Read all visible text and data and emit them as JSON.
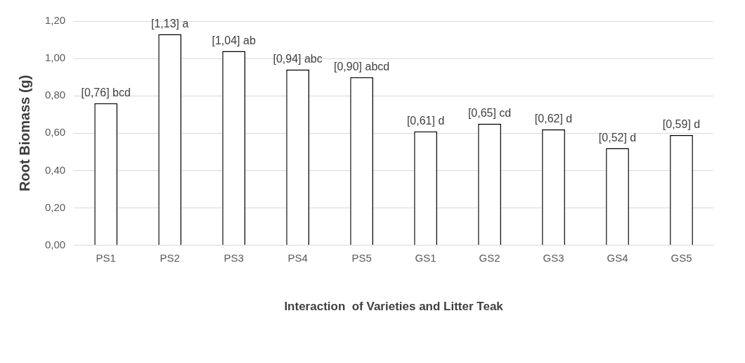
{
  "chart_data": {
    "type": "bar",
    "xlabel": "Interaction  of Varieties and Litter Teak",
    "ylabel": "Root Biomass (g)",
    "categories": [
      "PS1",
      "PS2",
      "PS3",
      "PS4",
      "PS5",
      "GS1",
      "GS2",
      "GS3",
      "GS4",
      "GS5"
    ],
    "values": [
      0.76,
      1.13,
      1.04,
      0.94,
      0.9,
      0.61,
      0.65,
      0.62,
      0.52,
      0.59
    ],
    "value_labels": [
      "[0,76] bcd",
      "[1,13] a",
      "[1,04] ab",
      "[0,94] abc",
      "[0,90] abcd",
      "[0,61] d",
      "[0,65] cd",
      "[0,62] d",
      "[0,52] d",
      "[0,59] d"
    ],
    "color": "#ffffff",
    "ylim": [
      0,
      1.2
    ],
    "yticks": [
      {
        "value": 0,
        "label": "0,00"
      },
      {
        "value": 0.2,
        "label": "0,20"
      },
      {
        "value": 0.4,
        "label": "0,40"
      },
      {
        "value": 0.6,
        "label": "0,60"
      },
      {
        "value": 0.8,
        "label": "0,80"
      },
      {
        "value": 1,
        "label": "1,00"
      },
      {
        "value": 1.2,
        "label": "1,20"
      }
    ],
    "grid": "y",
    "legend": false
  }
}
